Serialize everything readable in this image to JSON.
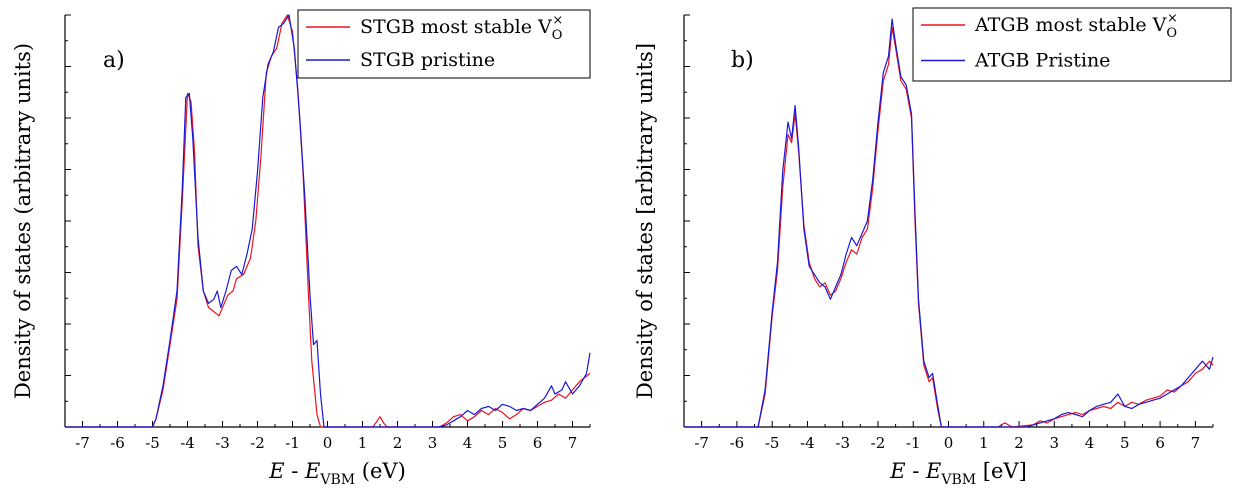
{
  "chart_data": [
    {
      "type": "line",
      "panel_label": "a)",
      "xlabel_main": "E",
      "xlabel_sep": " - ",
      "xlabel_var": "E",
      "xlabel_sub": "VBM",
      "xlabel_unit": " (eV)",
      "ylabel": "Density of states (arbitrary units)",
      "xlim": [
        -7.5,
        7.5
      ],
      "ylim": [
        0,
        1
      ],
      "xticks": [
        -7,
        -6,
        -5,
        -4,
        -3,
        -2,
        -1,
        0,
        1,
        2,
        3,
        4,
        5,
        6,
        7
      ],
      "grid": false,
      "legend_position": "top-right",
      "series": [
        {
          "name": "STGB most stable V",
          "name_sub": "O",
          "name_sup": "×",
          "color": "#e8141e",
          "points": [
            [
              -7.5,
              0
            ],
            [
              -5.0,
              0
            ],
            [
              -4.9,
              0.02
            ],
            [
              -4.7,
              0.09
            ],
            [
              -4.5,
              0.2
            ],
            [
              -4.3,
              0.31
            ],
            [
              -4.15,
              0.55
            ],
            [
              -4.0,
              0.81
            ],
            [
              -3.9,
              0.79
            ],
            [
              -3.8,
              0.67
            ],
            [
              -3.7,
              0.44
            ],
            [
              -3.55,
              0.33
            ],
            [
              -3.4,
              0.29
            ],
            [
              -3.25,
              0.28
            ],
            [
              -3.1,
              0.27
            ],
            [
              -3.0,
              0.29
            ],
            [
              -2.85,
              0.32
            ],
            [
              -2.7,
              0.33
            ],
            [
              -2.6,
              0.36
            ],
            [
              -2.4,
              0.37
            ],
            [
              -2.2,
              0.41
            ],
            [
              -2.05,
              0.5
            ],
            [
              -1.9,
              0.66
            ],
            [
              -1.75,
              0.86
            ],
            [
              -1.6,
              0.9
            ],
            [
              -1.45,
              0.92
            ],
            [
              -1.3,
              0.98
            ],
            [
              -1.15,
              1.0
            ],
            [
              -1.0,
              0.96
            ],
            [
              -0.85,
              0.82
            ],
            [
              -0.7,
              0.62
            ],
            [
              -0.55,
              0.33
            ],
            [
              -0.45,
              0.16
            ],
            [
              -0.3,
              0.03
            ],
            [
              -0.2,
              0
            ],
            [
              1.3,
              0
            ],
            [
              1.5,
              0.025
            ],
            [
              1.6,
              0.01
            ],
            [
              1.7,
              0
            ],
            [
              3.2,
              0
            ],
            [
              3.4,
              0.01
            ],
            [
              3.6,
              0.025
            ],
            [
              3.8,
              0.03
            ],
            [
              4.0,
              0.015
            ],
            [
              4.2,
              0.025
            ],
            [
              4.4,
              0.04
            ],
            [
              4.6,
              0.03
            ],
            [
              4.8,
              0.045
            ],
            [
              5.0,
              0.035
            ],
            [
              5.2,
              0.02
            ],
            [
              5.4,
              0.03
            ],
            [
              5.6,
              0.045
            ],
            [
              5.8,
              0.04
            ],
            [
              6.0,
              0.05
            ],
            [
              6.2,
              0.06
            ],
            [
              6.4,
              0.065
            ],
            [
              6.6,
              0.08
            ],
            [
              6.8,
              0.07
            ],
            [
              7.0,
              0.09
            ],
            [
              7.2,
              0.11
            ],
            [
              7.5,
              0.13
            ]
          ]
        },
        {
          "name": "STGB pristine",
          "color": "#1818d6",
          "points": [
            [
              -7.5,
              0
            ],
            [
              -5.0,
              0
            ],
            [
              -4.9,
              0.02
            ],
            [
              -4.7,
              0.1
            ],
            [
              -4.5,
              0.21
            ],
            [
              -4.3,
              0.33
            ],
            [
              -4.15,
              0.58
            ],
            [
              -4.05,
              0.8
            ],
            [
              -3.95,
              0.81
            ],
            [
              -3.85,
              0.7
            ],
            [
              -3.7,
              0.46
            ],
            [
              -3.55,
              0.33
            ],
            [
              -3.4,
              0.3
            ],
            [
              -3.25,
              0.31
            ],
            [
              -3.15,
              0.33
            ],
            [
              -3.05,
              0.29
            ],
            [
              -2.9,
              0.33
            ],
            [
              -2.75,
              0.38
            ],
            [
              -2.6,
              0.39
            ],
            [
              -2.45,
              0.37
            ],
            [
              -2.3,
              0.42
            ],
            [
              -2.15,
              0.48
            ],
            [
              -2.0,
              0.62
            ],
            [
              -1.85,
              0.8
            ],
            [
              -1.7,
              0.88
            ],
            [
              -1.55,
              0.91
            ],
            [
              -1.4,
              0.97
            ],
            [
              -1.25,
              0.98
            ],
            [
              -1.1,
              1.0
            ],
            [
              -0.95,
              0.92
            ],
            [
              -0.8,
              0.76
            ],
            [
              -0.65,
              0.56
            ],
            [
              -0.5,
              0.32
            ],
            [
              -0.4,
              0.2
            ],
            [
              -0.3,
              0.21
            ],
            [
              -0.2,
              0.08
            ],
            [
              -0.1,
              0
            ],
            [
              3.2,
              0
            ],
            [
              3.4,
              0.005
            ],
            [
              3.6,
              0.015
            ],
            [
              3.8,
              0.025
            ],
            [
              4.0,
              0.04
            ],
            [
              4.2,
              0.03
            ],
            [
              4.4,
              0.045
            ],
            [
              4.6,
              0.05
            ],
            [
              4.8,
              0.04
            ],
            [
              5.0,
              0.055
            ],
            [
              5.2,
              0.05
            ],
            [
              5.4,
              0.04
            ],
            [
              5.6,
              0.045
            ],
            [
              5.8,
              0.04
            ],
            [
              6.0,
              0.055
            ],
            [
              6.2,
              0.07
            ],
            [
              6.4,
              0.1
            ],
            [
              6.5,
              0.08
            ],
            [
              6.7,
              0.09
            ],
            [
              6.8,
              0.11
            ],
            [
              7.0,
              0.08
            ],
            [
              7.2,
              0.1
            ],
            [
              7.4,
              0.13
            ],
            [
              7.5,
              0.18
            ]
          ]
        }
      ]
    },
    {
      "type": "line",
      "panel_label": "b)",
      "xlabel_main": "E",
      "xlabel_sep": " - ",
      "xlabel_var": "E",
      "xlabel_sub": "VBM",
      "xlabel_unit": " [eV]",
      "ylabel": "Density of states [arbitrary units]",
      "xlim": [
        -7.5,
        7.5
      ],
      "ylim": [
        0,
        1
      ],
      "xticks": [
        -7,
        -6,
        -5,
        -4,
        -3,
        -2,
        -1,
        0,
        1,
        2,
        3,
        4,
        5,
        6,
        7
      ],
      "grid": false,
      "legend_position": "top-right",
      "series": [
        {
          "name": "ATGB most stable V",
          "name_sub": "O",
          "name_sup": "×",
          "color": "#e8141e",
          "points": [
            [
              -7.5,
              0
            ],
            [
              -5.4,
              0
            ],
            [
              -5.2,
              0.08
            ],
            [
              -5.0,
              0.27
            ],
            [
              -4.85,
              0.38
            ],
            [
              -4.7,
              0.58
            ],
            [
              -4.55,
              0.71
            ],
            [
              -4.45,
              0.69
            ],
            [
              -4.35,
              0.76
            ],
            [
              -4.25,
              0.67
            ],
            [
              -4.1,
              0.49
            ],
            [
              -3.95,
              0.4
            ],
            [
              -3.8,
              0.36
            ],
            [
              -3.65,
              0.34
            ],
            [
              -3.5,
              0.35
            ],
            [
              -3.35,
              0.32
            ],
            [
              -3.2,
              0.33
            ],
            [
              -3.05,
              0.36
            ],
            [
              -2.9,
              0.4
            ],
            [
              -2.75,
              0.43
            ],
            [
              -2.6,
              0.42
            ],
            [
              -2.45,
              0.46
            ],
            [
              -2.3,
              0.48
            ],
            [
              -2.15,
              0.58
            ],
            [
              -2.0,
              0.72
            ],
            [
              -1.85,
              0.84
            ],
            [
              -1.7,
              0.88
            ],
            [
              -1.6,
              0.97
            ],
            [
              -1.5,
              0.92
            ],
            [
              -1.35,
              0.84
            ],
            [
              -1.2,
              0.82
            ],
            [
              -1.05,
              0.75
            ],
            [
              -0.95,
              0.5
            ],
            [
              -0.85,
              0.3
            ],
            [
              -0.7,
              0.15
            ],
            [
              -0.55,
              0.11
            ],
            [
              -0.45,
              0.12
            ],
            [
              -0.3,
              0.04
            ],
            [
              -0.2,
              0
            ],
            [
              1.4,
              0
            ],
            [
              1.6,
              0.01
            ],
            [
              1.8,
              0
            ],
            [
              2.4,
              0.005
            ],
            [
              2.6,
              0.015
            ],
            [
              2.8,
              0.01
            ],
            [
              3.0,
              0.02
            ],
            [
              3.2,
              0.025
            ],
            [
              3.4,
              0.03
            ],
            [
              3.6,
              0.035
            ],
            [
              3.8,
              0.03
            ],
            [
              4.0,
              0.04
            ],
            [
              4.2,
              0.045
            ],
            [
              4.4,
              0.05
            ],
            [
              4.6,
              0.045
            ],
            [
              4.8,
              0.06
            ],
            [
              5.0,
              0.05
            ],
            [
              5.2,
              0.06
            ],
            [
              5.4,
              0.055
            ],
            [
              5.6,
              0.065
            ],
            [
              5.8,
              0.07
            ],
            [
              6.0,
              0.075
            ],
            [
              6.2,
              0.09
            ],
            [
              6.4,
              0.085
            ],
            [
              6.6,
              0.1
            ],
            [
              6.8,
              0.11
            ],
            [
              7.0,
              0.13
            ],
            [
              7.2,
              0.14
            ],
            [
              7.4,
              0.16
            ],
            [
              7.5,
              0.15
            ]
          ]
        },
        {
          "name": "ATGB Pristine",
          "color": "#1818d6",
          "points": [
            [
              -7.5,
              0
            ],
            [
              -5.4,
              0
            ],
            [
              -5.2,
              0.09
            ],
            [
              -5.0,
              0.28
            ],
            [
              -4.85,
              0.4
            ],
            [
              -4.7,
              0.62
            ],
            [
              -4.55,
              0.74
            ],
            [
              -4.45,
              0.7
            ],
            [
              -4.35,
              0.78
            ],
            [
              -4.25,
              0.68
            ],
            [
              -4.1,
              0.48
            ],
            [
              -3.95,
              0.39
            ],
            [
              -3.8,
              0.37
            ],
            [
              -3.65,
              0.35
            ],
            [
              -3.5,
              0.34
            ],
            [
              -3.35,
              0.31
            ],
            [
              -3.2,
              0.34
            ],
            [
              -3.05,
              0.37
            ],
            [
              -2.9,
              0.42
            ],
            [
              -2.75,
              0.46
            ],
            [
              -2.6,
              0.44
            ],
            [
              -2.45,
              0.47
            ],
            [
              -2.3,
              0.5
            ],
            [
              -2.15,
              0.6
            ],
            [
              -2.0,
              0.74
            ],
            [
              -1.85,
              0.86
            ],
            [
              -1.7,
              0.9
            ],
            [
              -1.6,
              0.99
            ],
            [
              -1.5,
              0.93
            ],
            [
              -1.35,
              0.85
            ],
            [
              -1.2,
              0.83
            ],
            [
              -1.05,
              0.76
            ],
            [
              -0.95,
              0.52
            ],
            [
              -0.85,
              0.31
            ],
            [
              -0.7,
              0.16
            ],
            [
              -0.55,
              0.12
            ],
            [
              -0.45,
              0.13
            ],
            [
              -0.3,
              0.05
            ],
            [
              -0.2,
              0
            ],
            [
              2.2,
              0
            ],
            [
              2.4,
              0.005
            ],
            [
              2.6,
              0.01
            ],
            [
              2.8,
              0.015
            ],
            [
              3.0,
              0.02
            ],
            [
              3.2,
              0.03
            ],
            [
              3.4,
              0.035
            ],
            [
              3.6,
              0.03
            ],
            [
              3.8,
              0.025
            ],
            [
              4.0,
              0.04
            ],
            [
              4.2,
              0.05
            ],
            [
              4.4,
              0.055
            ],
            [
              4.6,
              0.06
            ],
            [
              4.8,
              0.08
            ],
            [
              5.0,
              0.05
            ],
            [
              5.2,
              0.045
            ],
            [
              5.4,
              0.055
            ],
            [
              5.6,
              0.06
            ],
            [
              5.8,
              0.065
            ],
            [
              6.0,
              0.07
            ],
            [
              6.2,
              0.08
            ],
            [
              6.4,
              0.09
            ],
            [
              6.6,
              0.1
            ],
            [
              6.8,
              0.12
            ],
            [
              7.0,
              0.14
            ],
            [
              7.2,
              0.16
            ],
            [
              7.4,
              0.14
            ],
            [
              7.5,
              0.17
            ]
          ]
        }
      ]
    }
  ]
}
